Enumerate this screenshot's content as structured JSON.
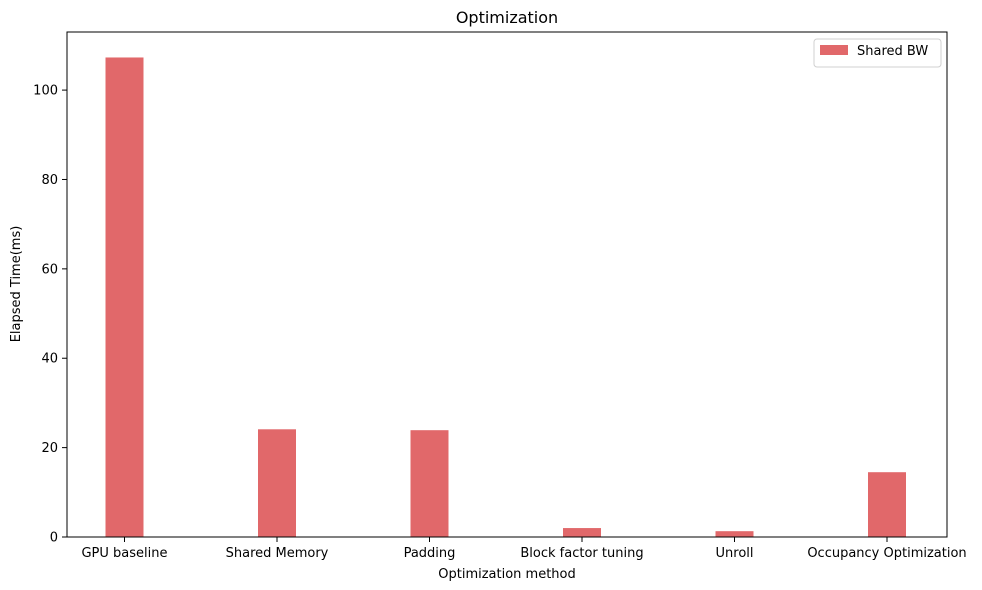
{
  "chart_data": {
    "type": "bar",
    "title": "Optimization",
    "xlabel": "Optimization method",
    "ylabel": "Elapsed Time(ms)",
    "categories": [
      "GPU baseline",
      "Shared Memory",
      "Padding",
      "Block factor tuning",
      "Unroll",
      "Occupancy Optimization"
    ],
    "series": [
      {
        "name": "Shared BW",
        "values": [
          107.3,
          24.1,
          23.9,
          2.0,
          1.3,
          14.5
        ],
        "color": "#e1686a"
      }
    ],
    "ylim": [
      0,
      113
    ],
    "yticks": [
      0,
      20,
      40,
      60,
      80,
      100
    ],
    "grid": false,
    "legend_position": "top-right"
  }
}
